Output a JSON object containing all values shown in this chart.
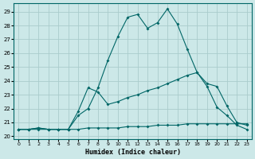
{
  "bg_color": "#cce8e8",
  "grid_color": "#aacccc",
  "line_color": "#006666",
  "x_label": "Humidex (Indice chaleur)",
  "xlim": [
    -0.5,
    23.5
  ],
  "ylim": [
    19.8,
    29.6
  ],
  "yticks": [
    20,
    21,
    22,
    23,
    24,
    25,
    26,
    27,
    28,
    29
  ],
  "xticks": [
    0,
    1,
    2,
    3,
    4,
    5,
    6,
    7,
    8,
    9,
    10,
    11,
    12,
    13,
    14,
    15,
    16,
    17,
    18,
    19,
    20,
    21,
    22,
    23
  ],
  "curve1_x": [
    0,
    1,
    2,
    3,
    4,
    5,
    6,
    7,
    8,
    9,
    10,
    11,
    12,
    13,
    14,
    15,
    16,
    17,
    18,
    19,
    20,
    21,
    22,
    23
  ],
  "curve1_y": [
    20.5,
    20.5,
    20.6,
    20.5,
    20.5,
    20.5,
    21.5,
    22.0,
    23.5,
    25.5,
    27.2,
    28.6,
    28.8,
    27.8,
    28.2,
    29.2,
    28.1,
    26.3,
    24.6,
    23.6,
    22.1,
    21.5,
    20.8,
    20.5
  ],
  "curve2_x": [
    0,
    1,
    2,
    3,
    4,
    5,
    6,
    7,
    8,
    9,
    10,
    11,
    12,
    13,
    14,
    15,
    16,
    17,
    18,
    19,
    20,
    21,
    22,
    23
  ],
  "curve2_y": [
    20.5,
    20.5,
    20.6,
    20.5,
    20.5,
    20.5,
    21.8,
    23.5,
    23.2,
    22.3,
    22.5,
    22.8,
    23.0,
    23.3,
    23.5,
    23.8,
    24.1,
    24.4,
    24.6,
    23.8,
    23.6,
    22.2,
    21.0,
    20.8
  ],
  "curve3_x": [
    0,
    1,
    2,
    3,
    4,
    5,
    6,
    7,
    8,
    9,
    10,
    11,
    12,
    13,
    14,
    15,
    16,
    17,
    18,
    19,
    20,
    21,
    22,
    23
  ],
  "curve3_y": [
    20.5,
    20.5,
    20.5,
    20.5,
    20.5,
    20.5,
    20.5,
    20.6,
    20.6,
    20.6,
    20.6,
    20.7,
    20.7,
    20.7,
    20.8,
    20.8,
    20.8,
    20.9,
    20.9,
    20.9,
    20.9,
    20.9,
    20.9,
    20.9
  ]
}
